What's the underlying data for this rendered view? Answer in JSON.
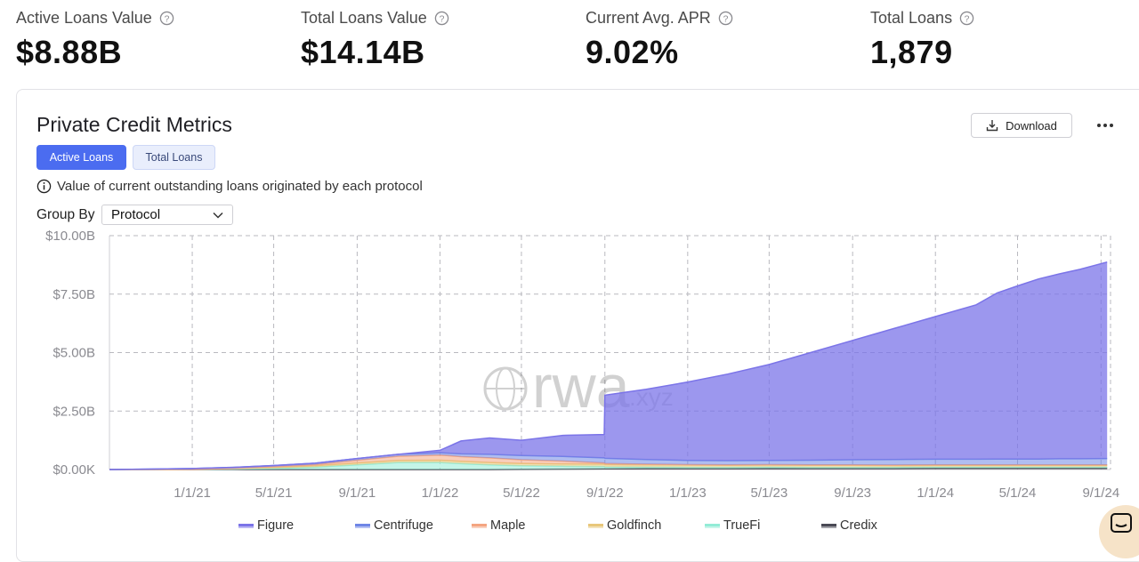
{
  "kpis": [
    {
      "label": "Active Loans Value",
      "value": "$8.88B"
    },
    {
      "label": "Total Loans Value",
      "value": "$14.14B"
    },
    {
      "label": "Current Avg. APR",
      "value": "9.02%"
    },
    {
      "label": "Total Loans",
      "value": "1,879"
    }
  ],
  "card": {
    "title": "Private Credit Metrics",
    "download_label": "Download",
    "tabs": [
      {
        "label": "Active Loans",
        "active": true
      },
      {
        "label": "Total Loans",
        "active": false
      }
    ],
    "info_text": "Value of current outstanding loans originated by each protocol",
    "group_by_label": "Group By",
    "group_by_value": "Protocol"
  },
  "watermark": {
    "main": "rwa",
    "suffix": ".xyz"
  },
  "colors": {
    "accent": "#4b6cf0",
    "figure": "#7b74e8",
    "centrifuge": "#6f86e6",
    "maple": "#f4a581",
    "goldfinch": "#e8c77a",
    "truefi": "#93ecd6",
    "credix": "#4a4a55"
  },
  "chart_data": {
    "type": "area",
    "stacked": true,
    "x_tick_labels": [
      "1/1/21",
      "5/1/21",
      "9/1/21",
      "1/1/22",
      "5/1/22",
      "9/1/22",
      "1/1/23",
      "5/1/23",
      "9/1/23",
      "1/1/24",
      "5/1/24",
      "9/1/24"
    ],
    "y_tick_labels": [
      "$10.00B",
      "$7.50B",
      "$5.00B",
      "$2.50B",
      "$0.00K"
    ],
    "ylim": [
      0,
      10
    ],
    "grid": true,
    "legend_position": "bottom",
    "x": [
      "2020-09-01",
      "2020-11-01",
      "2021-01-01",
      "2021-03-01",
      "2021-05-01",
      "2021-07-01",
      "2021-09-01",
      "2021-11-01",
      "2022-01-01",
      "2022-02-01",
      "2022-03-15",
      "2022-05-01",
      "2022-07-01",
      "2022-08-31",
      "2022-09-01",
      "2022-11-01",
      "2023-01-01",
      "2023-03-01",
      "2023-05-01",
      "2023-07-01",
      "2023-09-01",
      "2023-11-01",
      "2024-01-01",
      "2024-03-01",
      "2024-04-01",
      "2024-05-01",
      "2024-06-01",
      "2024-07-01",
      "2024-08-01",
      "2024-09-10"
    ],
    "series": [
      {
        "name": "Credix",
        "values": [
          0,
          0,
          0,
          0,
          0,
          0,
          0,
          0,
          0,
          0,
          0,
          0.01,
          0.02,
          0.03,
          0.03,
          0.04,
          0.04,
          0.04,
          0.05,
          0.05,
          0.05,
          0.05,
          0.06,
          0.06,
          0.06,
          0.06,
          0.06,
          0.06,
          0.06,
          0.06
        ]
      },
      {
        "name": "TrueFi",
        "values": [
          0,
          0,
          0.01,
          0.02,
          0.05,
          0.1,
          0.2,
          0.3,
          0.3,
          0.25,
          0.2,
          0.15,
          0.12,
          0.1,
          0.08,
          0.06,
          0.05,
          0.05,
          0.05,
          0.04,
          0.04,
          0.04,
          0.04,
          0.04,
          0.04,
          0.04,
          0.04,
          0.04,
          0.04,
          0.04
        ]
      },
      {
        "name": "Goldfinch",
        "values": [
          0,
          0,
          0,
          0.02,
          0.04,
          0.06,
          0.08,
          0.09,
          0.1,
          0.1,
          0.1,
          0.1,
          0.1,
          0.1,
          0.1,
          0.1,
          0.1,
          0.09,
          0.09,
          0.09,
          0.09,
          0.08,
          0.08,
          0.08,
          0.08,
          0.08,
          0.08,
          0.08,
          0.08,
          0.08
        ]
      },
      {
        "name": "Maple",
        "values": [
          0,
          0,
          0,
          0.01,
          0.03,
          0.05,
          0.12,
          0.18,
          0.22,
          0.2,
          0.2,
          0.16,
          0.12,
          0.05,
          0.05,
          0.03,
          0.02,
          0.02,
          0.02,
          0.02,
          0.02,
          0.02,
          0.02,
          0.02,
          0.02,
          0.02,
          0.02,
          0.02,
          0.02,
          0.02
        ]
      },
      {
        "name": "Centrifuge",
        "values": [
          0,
          0.02,
          0.03,
          0.04,
          0.05,
          0.06,
          0.07,
          0.08,
          0.1,
          0.12,
          0.15,
          0.18,
          0.2,
          0.22,
          0.22,
          0.2,
          0.18,
          0.18,
          0.18,
          0.2,
          0.22,
          0.24,
          0.24,
          0.24,
          0.25,
          0.25,
          0.25,
          0.26,
          0.26,
          0.27
        ]
      },
      {
        "name": "Figure",
        "values": [
          0,
          0,
          0,
          0,
          0,
          0,
          0,
          0,
          0.1,
          0.55,
          0.7,
          0.65,
          0.9,
          1.0,
          2.7,
          3.0,
          3.35,
          3.7,
          4.1,
          4.6,
          5.1,
          5.6,
          6.1,
          6.6,
          7.1,
          7.4,
          7.7,
          7.9,
          8.1,
          8.4
        ]
      }
    ]
  }
}
